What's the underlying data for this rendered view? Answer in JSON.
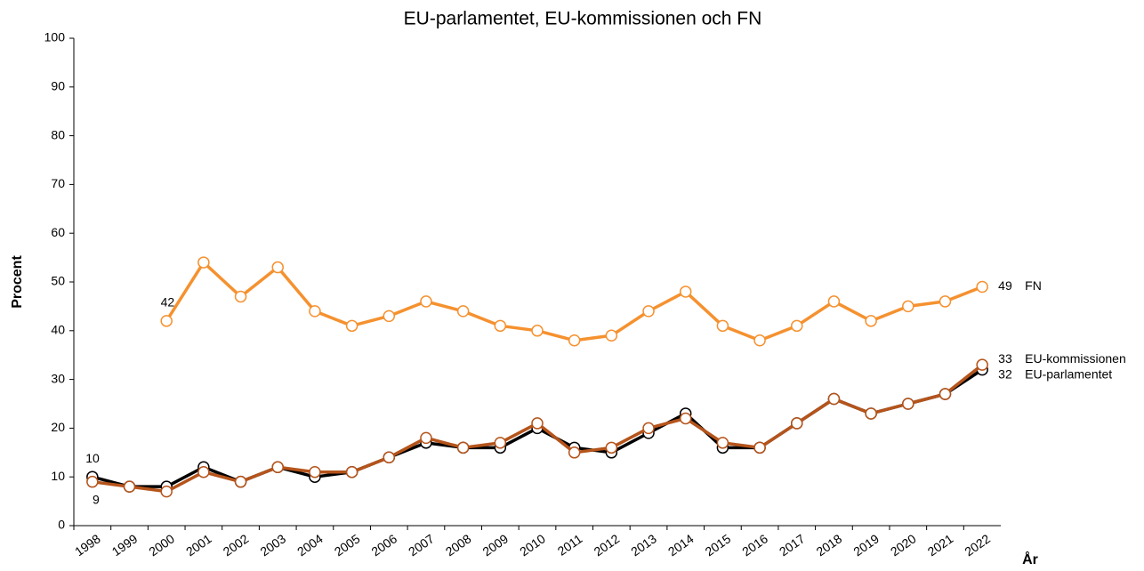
{
  "chart_data": {
    "type": "line",
    "title": "EU-parlamentet, EU-kommissionen och FN",
    "y_label": "Procent",
    "x_label": "År",
    "categories": [
      "1998",
      "1999",
      "2000",
      "2001",
      "2002",
      "2003",
      "2004",
      "2005",
      "2006",
      "2007",
      "2008",
      "2009",
      "2010",
      "2011",
      "2012",
      "2013",
      "2014",
      "2015",
      "2016",
      "2017",
      "2018",
      "2019",
      "2020",
      "2021",
      "2022"
    ],
    "series": [
      {
        "name": "FN",
        "color": "#f5912f",
        "values": [
          null,
          null,
          42,
          54,
          47,
          53,
          44,
          41,
          43,
          46,
          44,
          41,
          40,
          38,
          39,
          44,
          48,
          41,
          38,
          41,
          46,
          42,
          45,
          46,
          49
        ]
      },
      {
        "name": "EU-parlamentet",
        "color": "#000000",
        "values": [
          10,
          8,
          8,
          12,
          9,
          12,
          10,
          11,
          14,
          17,
          16,
          16,
          20,
          16,
          15,
          19,
          23,
          16,
          16,
          21,
          26,
          23,
          25,
          27,
          32
        ]
      },
      {
        "name": "EU-kommissionen",
        "color": "#b5541b",
        "values": [
          9,
          8,
          7,
          11,
          9,
          12,
          11,
          11,
          14,
          18,
          16,
          17,
          21,
          15,
          16,
          20,
          22,
          17,
          16,
          21,
          26,
          23,
          25,
          27,
          33
        ]
      }
    ],
    "ylim": [
      0,
      100
    ],
    "yticks": [
      0,
      10,
      20,
      30,
      40,
      50,
      60,
      70,
      80,
      90,
      100
    ]
  }
}
